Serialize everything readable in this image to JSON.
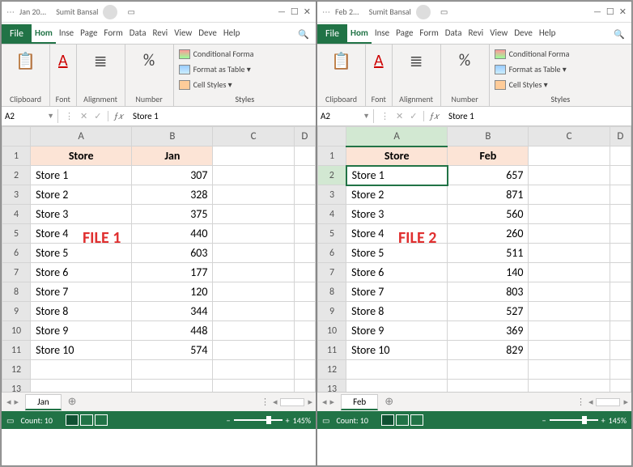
{
  "panes": [
    {
      "title_doc": "Jan 20...",
      "user": "Sumit Bansal",
      "cell_ref": "A2",
      "formula_val": "Store 1",
      "sheet_name": "Jan",
      "overlay": "FILE 1",
      "header_store": "Store",
      "header_month": "Jan",
      "selected_row": 0,
      "rows": [
        {
          "s": "Store 1",
          "v": 307
        },
        {
          "s": "Store 2",
          "v": 328
        },
        {
          "s": "Store 3",
          "v": 375
        },
        {
          "s": "Store 4",
          "v": 440
        },
        {
          "s": "Store 5",
          "v": 603
        },
        {
          "s": "Store 6",
          "v": 177
        },
        {
          "s": "Store 7",
          "v": 120
        },
        {
          "s": "Store 8",
          "v": 344
        },
        {
          "s": "Store 9",
          "v": 448
        },
        {
          "s": "Store 10",
          "v": 574
        }
      ]
    },
    {
      "title_doc": "Feb 2...",
      "user": "Sumit Bansal",
      "cell_ref": "A2",
      "formula_val": "Store 1",
      "sheet_name": "Feb",
      "overlay": "FILE 2",
      "header_store": "Store",
      "header_month": "Feb",
      "selected_row": 1,
      "rows": [
        {
          "s": "Store 1",
          "v": 657
        },
        {
          "s": "Store 2",
          "v": 871
        },
        {
          "s": "Store 3",
          "v": 560
        },
        {
          "s": "Store 4",
          "v": 260
        },
        {
          "s": "Store 5",
          "v": 511
        },
        {
          "s": "Store 6",
          "v": 140
        },
        {
          "s": "Store 7",
          "v": 803
        },
        {
          "s": "Store 8",
          "v": 527
        },
        {
          "s": "Store 9",
          "v": 369
        },
        {
          "s": "Store 10",
          "v": 829
        }
      ]
    }
  ],
  "ribbon": {
    "file": "File",
    "tabs": [
      "Home",
      "Insert",
      "Page",
      "Form",
      "Data",
      "Revi",
      "View",
      "Deve",
      "Help"
    ],
    "tabs_short": [
      "Hom",
      "Inse",
      "Page",
      "Form",
      "Data",
      "Revi",
      "View",
      "Deve",
      "Help"
    ],
    "groups": {
      "clipboard": "Clipboard",
      "font": "Font",
      "alignment": "Alignment",
      "number": "Number",
      "styles": "Styles"
    },
    "style_items": {
      "cf": "Conditional Forma",
      "ft": "Format as Table",
      "cs": "Cell Styles"
    }
  },
  "status": {
    "count_label": "Count: 10",
    "zoom": "145%"
  },
  "colors": {
    "excel_green": "#217346",
    "header_fill": "#fce4d6",
    "overlay_text": "#e03030"
  }
}
